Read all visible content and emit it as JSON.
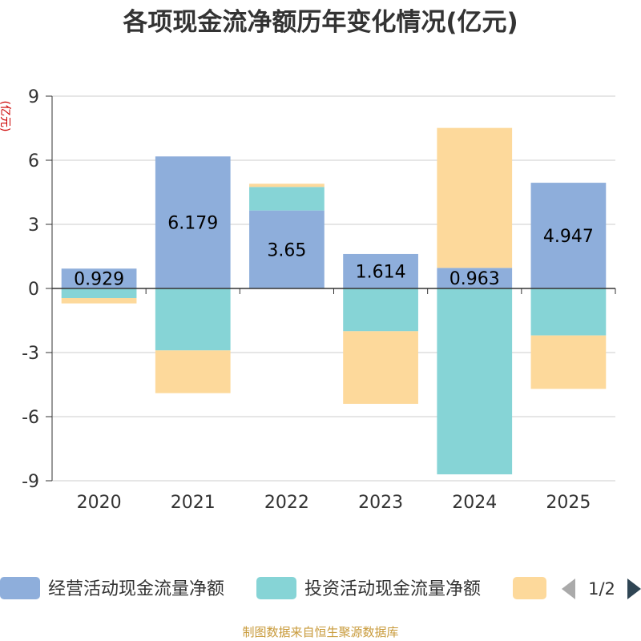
{
  "chart_data": {
    "type": "bar",
    "stacked": true,
    "title": "各项现金流净额历年变化情况(亿元)",
    "ylabel": "(亿元)",
    "xlabel": "",
    "ylim": [
      -9,
      9
    ],
    "yticks": [
      9,
      6,
      3,
      0,
      -3,
      -6,
      -9
    ],
    "categories": [
      "2020",
      "2021",
      "2022",
      "2023",
      "2024",
      "2025"
    ],
    "series": [
      {
        "name": "经营活动现金流量净额",
        "color": "#8eaedb",
        "values": [
          0.929,
          6.179,
          3.65,
          1.614,
          0.963,
          4.947
        ],
        "labels": [
          "0.929",
          "6.179",
          "3.65",
          "1.614",
          "0.963",
          "4.947"
        ]
      },
      {
        "name": "投资活动现金流量净额",
        "color": "#86d4d6",
        "values": [
          -0.45,
          -2.9,
          1.1,
          -2.0,
          -8.7,
          -2.2
        ]
      },
      {
        "name": "",
        "color": "#fdd99b",
        "values": [
          -0.25,
          -2.0,
          0.15,
          -3.4,
          6.55,
          -2.5
        ]
      }
    ],
    "legend_position": "bottom",
    "legend_pager": "1/2",
    "source": "制图数据来自恒生聚源数据库"
  }
}
